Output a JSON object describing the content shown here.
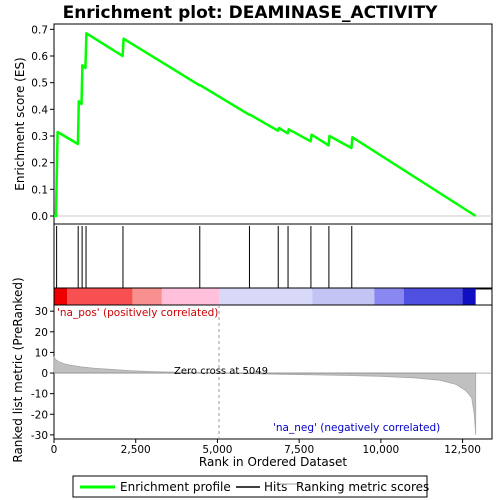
{
  "chart_data": {
    "type": "line",
    "title": "Enrichment plot: DEAMINASE_ACTIVITY",
    "top_panel": {
      "ylabel": "Enrichment score (ES)",
      "ylim": [
        -0.03,
        0.72
      ],
      "yticks": [
        "0.0",
        "0.1",
        "0.2",
        "0.3",
        "0.4",
        "0.5",
        "0.6",
        "0.7"
      ],
      "ytick_values": [
        0,
        0.1,
        0.2,
        0.3,
        0.4,
        0.5,
        0.6,
        0.7
      ],
      "series": [
        {
          "name": "Enrichment profile",
          "color": "#00ff00",
          "x": [
            0,
            60,
            110,
            730,
            760,
            840,
            870,
            960,
            990,
            2100,
            2130,
            4450,
            4480,
            5970,
            6000,
            6850,
            6880,
            7150,
            7180,
            7850,
            7880,
            8400,
            8430,
            9100,
            9130,
            12900
          ],
          "y": [
            0.0,
            0.0,
            0.315,
            0.27,
            0.43,
            0.42,
            0.565,
            0.555,
            0.685,
            0.6,
            0.665,
            0.49,
            0.49,
            0.38,
            0.38,
            0.32,
            0.33,
            0.31,
            0.325,
            0.28,
            0.305,
            0.265,
            0.3,
            0.255,
            0.295,
            0.0
          ]
        }
      ]
    },
    "hits": [
      80,
      740,
      860,
      980,
      2110,
      4460,
      5980,
      6860,
      7160,
      7860,
      8410,
      9110
    ],
    "xlim": [
      0,
      13400
    ],
    "xticks": [
      "0",
      "2,500",
      "5,000",
      "7,500",
      "10,000",
      "12,500"
    ],
    "xtick_values": [
      0,
      2500,
      5000,
      7500,
      10000,
      12500
    ],
    "bottom_panel": {
      "ylabel": "Ranked list metric (PreRanked)",
      "xlabel": "Rank in Ordered Dataset",
      "ylim": [
        -32,
        33
      ],
      "yticks": [
        "30",
        "20",
        "10",
        "0",
        "-10",
        "-20",
        "-30"
      ],
      "ytick_values": [
        30,
        20,
        10,
        0,
        -10,
        -20,
        -30
      ],
      "metric_curve": {
        "rank": [
          0,
          50,
          150,
          300,
          500,
          800,
          1200,
          1700,
          2300,
          3000,
          3800,
          4500,
          5049,
          6000,
          7000,
          8000,
          9000,
          10000,
          11000,
          11800,
          12300,
          12600,
          12780,
          12860,
          12900
        ],
        "value": [
          8,
          6.5,
          5.5,
          4.5,
          3.8,
          3.0,
          2.4,
          1.8,
          1.2,
          0.7,
          0.35,
          0.15,
          0,
          -0.3,
          -0.6,
          -0.9,
          -1.2,
          -1.6,
          -2.3,
          -3.5,
          -5.5,
          -8.5,
          -12,
          -20,
          -30
        ]
      },
      "zero_cross_label": "Zero cross at 5049",
      "pos_label": "'na_pos' (positively correlated)",
      "neg_label": "'na_neg' (negatively correlated)"
    },
    "color_bar": [
      {
        "start": 0,
        "end": 400,
        "color": "#ee0000"
      },
      {
        "start": 400,
        "end": 2400,
        "color": "#f85050"
      },
      {
        "start": 2400,
        "end": 3300,
        "color": "#f89090"
      },
      {
        "start": 3300,
        "end": 5049,
        "color": "#ffc0dc"
      },
      {
        "start": 5049,
        "end": 7900,
        "color": "#d8d8f8"
      },
      {
        "start": 7900,
        "end": 9800,
        "color": "#c4c4f4"
      },
      {
        "start": 9800,
        "end": 10700,
        "color": "#8888f0"
      },
      {
        "start": 10700,
        "end": 12500,
        "color": "#5050e0"
      },
      {
        "start": 12500,
        "end": 12900,
        "color": "#1010c0"
      }
    ],
    "legend": [
      {
        "label": "Enrichment profile",
        "color": "#00ff00"
      },
      {
        "label": "Hits",
        "color": "#000000"
      },
      {
        "label": "Ranking metric scores",
        "color": "#c0c0c0"
      }
    ]
  }
}
